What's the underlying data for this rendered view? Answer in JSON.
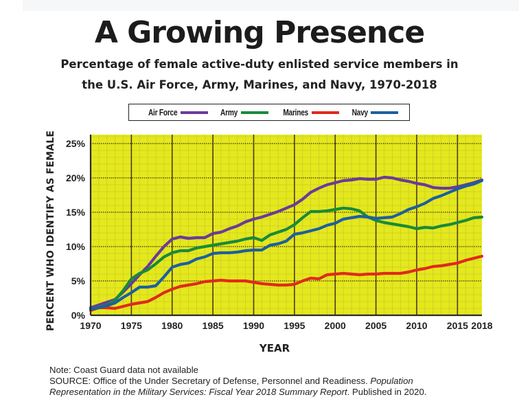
{
  "chart_data": {
    "type": "line",
    "title": "A Growing Presence",
    "subtitle": [
      "Percentage of female active-duty enlisted service members in",
      "the U.S. Air Force, Army, Marines, and Navy, 1970-2018"
    ],
    "xlabel": "YEAR",
    "ylabel": "PERCENT WHO IDENTIFY AS FEMALE",
    "xlim": [
      1970,
      2018
    ],
    "ylim": [
      0,
      25
    ],
    "x_ticks": [
      1970,
      1975,
      1980,
      1985,
      1990,
      1995,
      2000,
      2005,
      2010,
      2015,
      2018
    ],
    "x_tick_labels": [
      "1970",
      "1975",
      "1980",
      "1985",
      "1990",
      "1995",
      "2000",
      "2005",
      "2010",
      "2015",
      "2018"
    ],
    "y_ticks": [
      0,
      5,
      10,
      15,
      20,
      25
    ],
    "y_tick_labels": [
      "0%",
      "5%",
      "10%",
      "15%",
      "20%",
      "25%"
    ],
    "grid": true,
    "legend_position": "top-center",
    "x": [
      1970,
      1971,
      1972,
      1973,
      1974,
      1975,
      1976,
      1977,
      1978,
      1979,
      1980,
      1981,
      1982,
      1983,
      1984,
      1985,
      1986,
      1987,
      1988,
      1989,
      1990,
      1991,
      1992,
      1993,
      1994,
      1995,
      1996,
      1997,
      1998,
      1999,
      2000,
      2001,
      2002,
      2003,
      2004,
      2005,
      2006,
      2007,
      2008,
      2009,
      2010,
      2011,
      2012,
      2013,
      2014,
      2015,
      2016,
      2017,
      2018
    ],
    "series": [
      {
        "name": "Air Force",
        "color": "#6b3a9a",
        "values": [
          1.1,
          1.5,
          1.9,
          2.3,
          3.4,
          4.6,
          5.9,
          7.1,
          8.6,
          10.0,
          11.1,
          11.4,
          11.2,
          11.3,
          11.3,
          11.9,
          12.1,
          12.6,
          13.0,
          13.6,
          14.0,
          14.3,
          14.7,
          15.1,
          15.6,
          16.1,
          16.9,
          17.9,
          18.5,
          19.0,
          19.3,
          19.6,
          19.7,
          19.9,
          19.8,
          19.8,
          20.1,
          20.0,
          19.7,
          19.5,
          19.2,
          19.0,
          18.6,
          18.5,
          18.5,
          18.7,
          19.0,
          19.3,
          19.7
        ]
      },
      {
        "name": "Army",
        "color": "#1a8a3a",
        "values": [
          0.9,
          1.2,
          1.5,
          2.2,
          3.6,
          5.3,
          6.1,
          6.6,
          7.5,
          8.5,
          9.1,
          9.4,
          9.4,
          9.8,
          10.0,
          10.2,
          10.4,
          10.6,
          10.8,
          11.1,
          11.3,
          10.9,
          11.7,
          12.1,
          12.5,
          13.2,
          14.2,
          15.1,
          15.1,
          15.2,
          15.4,
          15.6,
          15.5,
          15.2,
          14.3,
          13.8,
          13.5,
          13.3,
          13.1,
          12.9,
          12.6,
          12.8,
          12.7,
          13.0,
          13.2,
          13.5,
          13.8,
          14.2,
          14.3
        ]
      },
      {
        "name": "Marines",
        "color": "#e02a1c",
        "values": [
          0.7,
          1.1,
          1.1,
          1.0,
          1.3,
          1.6,
          1.8,
          2.0,
          2.6,
          3.3,
          3.8,
          4.2,
          4.4,
          4.6,
          4.9,
          5.0,
          5.1,
          5.0,
          5.0,
          5.0,
          4.8,
          4.6,
          4.5,
          4.4,
          4.4,
          4.5,
          5.0,
          5.4,
          5.3,
          5.9,
          6.0,
          6.1,
          6.0,
          5.9,
          6.0,
          6.0,
          6.1,
          6.1,
          6.1,
          6.3,
          6.6,
          6.8,
          7.1,
          7.2,
          7.4,
          7.6,
          8.0,
          8.3,
          8.6
        ]
      },
      {
        "name": "Navy",
        "color": "#1d5fa0",
        "values": [
          0.9,
          1.1,
          1.4,
          1.8,
          2.6,
          3.3,
          4.1,
          4.1,
          4.3,
          5.6,
          7.0,
          7.4,
          7.6,
          8.2,
          8.5,
          9.0,
          9.1,
          9.1,
          9.2,
          9.4,
          9.5,
          9.5,
          10.2,
          10.4,
          10.8,
          11.8,
          12.0,
          12.3,
          12.6,
          13.1,
          13.4,
          14.0,
          14.2,
          14.4,
          14.3,
          14.1,
          14.2,
          14.3,
          14.8,
          15.4,
          15.8,
          16.3,
          17.0,
          17.4,
          17.9,
          18.4,
          18.8,
          19.1,
          19.6
        ]
      }
    ]
  },
  "notes": {
    "note": "Note: Coast Guard data not available",
    "source_prefix": "SOURCE: Office of the Under Secretary of Defense, Personnel and Readiness. ",
    "source_title_a": "Population",
    "source_title_b": "Representation in the Military Services: Fiscal Year 2018 Summary Report",
    "source_suffix": ". Published in 2020."
  },
  "colors": {
    "plot_background": "#e4e81c",
    "minor_grid": "#c8cc2a",
    "major_grid": "#4a3a1a"
  }
}
